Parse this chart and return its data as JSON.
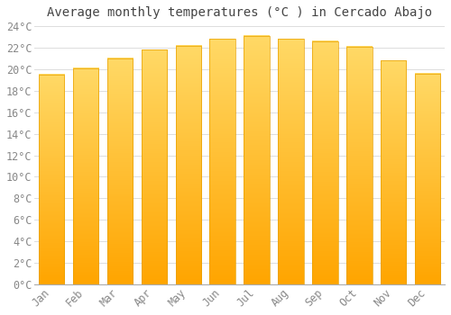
{
  "title": "Average monthly temperatures (°C ) in Cercado Abajo",
  "months": [
    "Jan",
    "Feb",
    "Mar",
    "Apr",
    "May",
    "Jun",
    "Jul",
    "Aug",
    "Sep",
    "Oct",
    "Nov",
    "Dec"
  ],
  "temperatures": [
    19.5,
    20.1,
    21.0,
    21.8,
    22.2,
    22.8,
    23.1,
    22.8,
    22.6,
    22.1,
    20.8,
    19.6
  ],
  "bar_color_top": "#FFD966",
  "bar_color_bottom": "#FFA500",
  "bar_edge_color": "#E8A000",
  "background_color": "#FFFFFF",
  "grid_color": "#DDDDDD",
  "ylim": [
    0,
    24
  ],
  "ytick_step": 2,
  "title_fontsize": 10,
  "tick_fontsize": 8.5,
  "font_family": "monospace",
  "tick_color": "#888888",
  "title_color": "#444444"
}
